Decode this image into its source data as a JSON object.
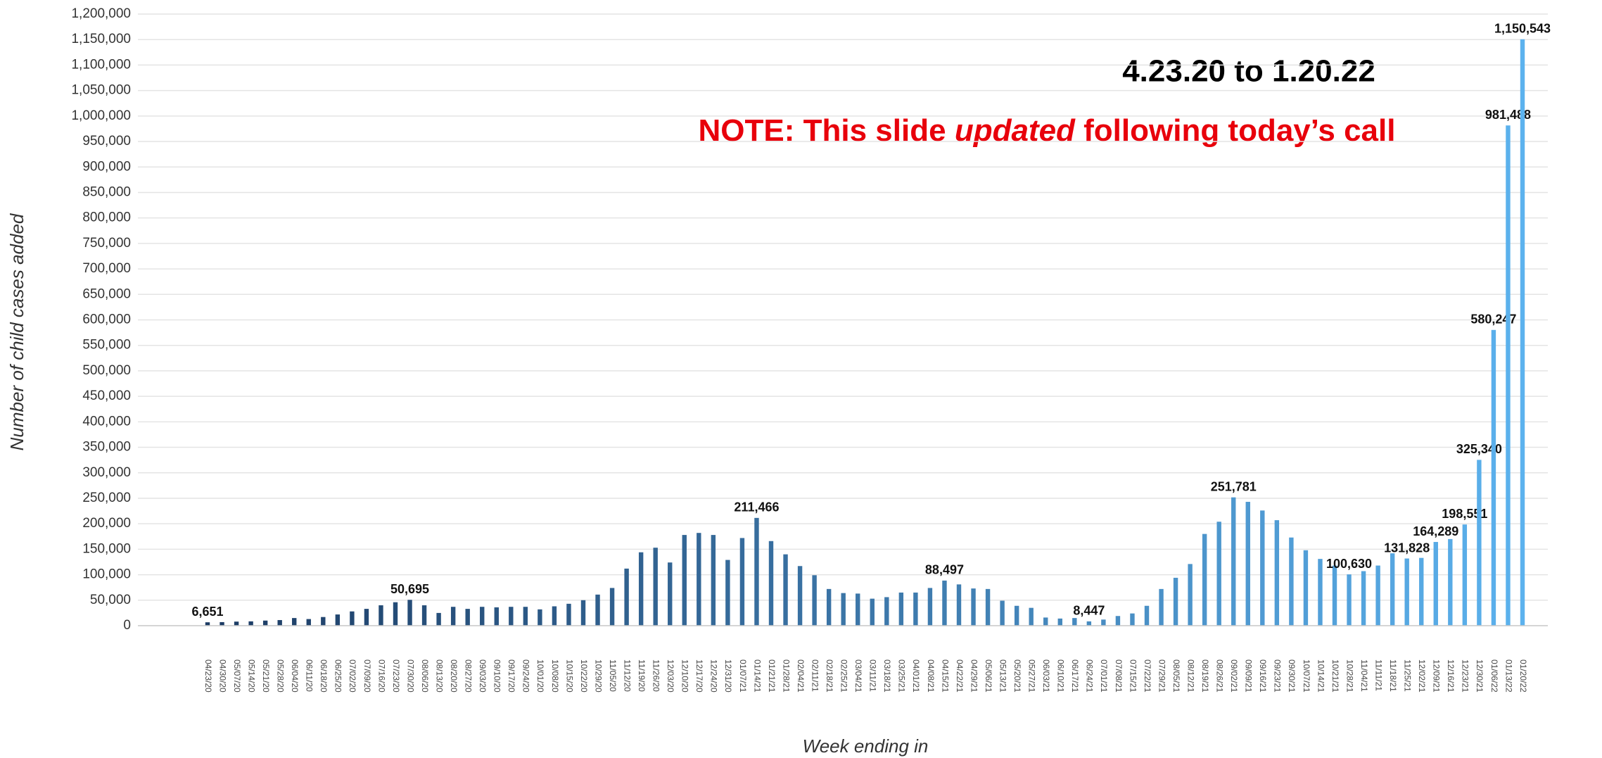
{
  "chart_data": {
    "type": "bar",
    "annotations": {
      "range": "4.23.20 to 1.20.22",
      "note": [
        "NOTE: This slide ",
        "updated",
        " following today’s call"
      ]
    },
    "y_label": "Number of child cases added",
    "x_label": "Week ending in",
    "categories": [
      "04/23/20",
      "04/30/20",
      "05/07/20",
      "05/14/20",
      "05/21/20",
      "05/28/20",
      "06/04/20",
      "06/11/20",
      "06/18/20",
      "06/25/20",
      "07/02/20",
      "07/09/20",
      "07/16/20",
      "07/23/20",
      "07/30/20",
      "08/06/20",
      "08/13/20",
      "08/20/20",
      "08/27/20",
      "09/03/20",
      "09/10/20",
      "09/17/20",
      "09/24/20",
      "10/01/20",
      "10/08/20",
      "10/15/20",
      "10/22/20",
      "10/29/20",
      "11/05/20",
      "11/12/20",
      "11/19/20",
      "11/26/20",
      "12/03/20",
      "12/10/20",
      "12/17/20",
      "12/24/20",
      "12/31/20",
      "01/07/21",
      "01/14/21",
      "01/21/21",
      "01/28/21",
      "02/04/21",
      "02/11/21",
      "02/18/21",
      "02/25/21",
      "03/04/21",
      "03/11/21",
      "03/18/21",
      "03/25/21",
      "04/01/21",
      "04/08/21",
      "04/15/21",
      "04/22/21",
      "04/29/21",
      "05/06/21",
      "05/13/21",
      "05/20/21",
      "05/27/21",
      "06/03/21",
      "06/10/21",
      "06/17/21",
      "06/24/21",
      "07/01/21",
      "07/08/21",
      "07/15/21",
      "07/22/21",
      "07/29/21",
      "08/05/21",
      "08/12/21",
      "08/19/21",
      "08/26/21",
      "09/02/21",
      "09/09/21",
      "09/16/21",
      "09/23/21",
      "09/30/21",
      "10/07/21",
      "10/14/21",
      "10/21/21",
      "10/28/21",
      "11/04/21",
      "11/11/21",
      "11/18/21",
      "11/25/21",
      "12/02/21",
      "12/09/21",
      "12/16/21",
      "12/23/21",
      "12/30/21",
      "01/06/22",
      "01/13/22",
      "01/20/22"
    ],
    "values": [
      6651,
      7000,
      8000,
      8500,
      10000,
      11000,
      15000,
      13000,
      17000,
      22000,
      28000,
      33000,
      40000,
      46000,
      50695,
      40000,
      25000,
      37000,
      33000,
      37000,
      36000,
      37000,
      37000,
      32000,
      38000,
      43000,
      50000,
      61000,
      74000,
      112000,
      144000,
      153000,
      124000,
      178000,
      182000,
      178000,
      129000,
      172000,
      211466,
      166000,
      140000,
      117000,
      99000,
      72000,
      64000,
      63000,
      53000,
      56000,
      65000,
      65000,
      74000,
      88497,
      81000,
      73000,
      72000,
      49000,
      39000,
      35000,
      16000,
      14000,
      15000,
      8447,
      12000,
      19000,
      24000,
      39000,
      72000,
      94000,
      121000,
      180000,
      204000,
      251781,
      243000,
      226000,
      207000,
      173000,
      148000,
      131000,
      118000,
      100630,
      107000,
      118000,
      142000,
      131828,
      133000,
      164289,
      170000,
      198551,
      325340,
      580247,
      981488,
      1150543
    ],
    "value_labels": [
      "6,651",
      null,
      null,
      null,
      null,
      null,
      null,
      null,
      null,
      null,
      null,
      null,
      null,
      null,
      "50,695",
      null,
      null,
      null,
      null,
      null,
      null,
      null,
      null,
      null,
      null,
      null,
      null,
      null,
      null,
      null,
      null,
      null,
      null,
      null,
      null,
      null,
      null,
      null,
      "211,466",
      null,
      null,
      null,
      null,
      null,
      null,
      null,
      null,
      null,
      null,
      null,
      null,
      "88,497",
      null,
      null,
      null,
      null,
      null,
      null,
      null,
      null,
      null,
      "8,447",
      null,
      null,
      null,
      null,
      null,
      null,
      null,
      null,
      null,
      "251,781",
      null,
      null,
      null,
      null,
      null,
      null,
      null,
      "100,630",
      null,
      null,
      null,
      "131,828",
      null,
      "164,289",
      null,
      "198,551",
      "325,340",
      "580,247",
      "981,488",
      "1,150,543"
    ],
    "colors": [
      "#1c3b63",
      "#5cb2ee"
    ],
    "ylim": [
      0,
      1200000
    ],
    "yticks": [
      0,
      {
        "value": 50000,
        "label": "50,000"
      },
      {
        "value": 100000,
        "label": "100,000"
      },
      {
        "value": 150000,
        "label": "150,000"
      },
      {
        "value": 200000,
        "label": "200,000"
      },
      {
        "value": 250000,
        "label": "250,000"
      },
      {
        "value": 300000,
        "label": "300,000"
      },
      {
        "value": 350000,
        "label": "350,000"
      },
      {
        "value": 400000,
        "label": "400,000"
      },
      {
        "value": 450000,
        "label": "450,000"
      },
      {
        "value": 500000,
        "label": "500,000"
      },
      {
        "value": 550000,
        "label": "550,000"
      },
      {
        "value": 600000,
        "label": "600,000"
      },
      {
        "value": 650000,
        "label": "650,000"
      },
      {
        "value": 700000,
        "label": "700,000"
      },
      {
        "value": 750000,
        "label": "750,000"
      },
      {
        "value": 800000,
        "label": "800,000"
      },
      {
        "value": 850000,
        "label": "850,000"
      },
      {
        "value": 900000,
        "label": "900,000"
      },
      {
        "value": 950000,
        "label": "950,000"
      },
      {
        "value": 1000000,
        "label": "1,000,000"
      },
      {
        "value": 1050000,
        "label": "1,050,000"
      },
      {
        "value": 1100000,
        "label": "1,100,000"
      },
      {
        "value": 1150000,
        "label": "1,150,000"
      },
      {
        "value": 1200000,
        "label": "1,200,000"
      }
    ],
    "grid": true
  }
}
